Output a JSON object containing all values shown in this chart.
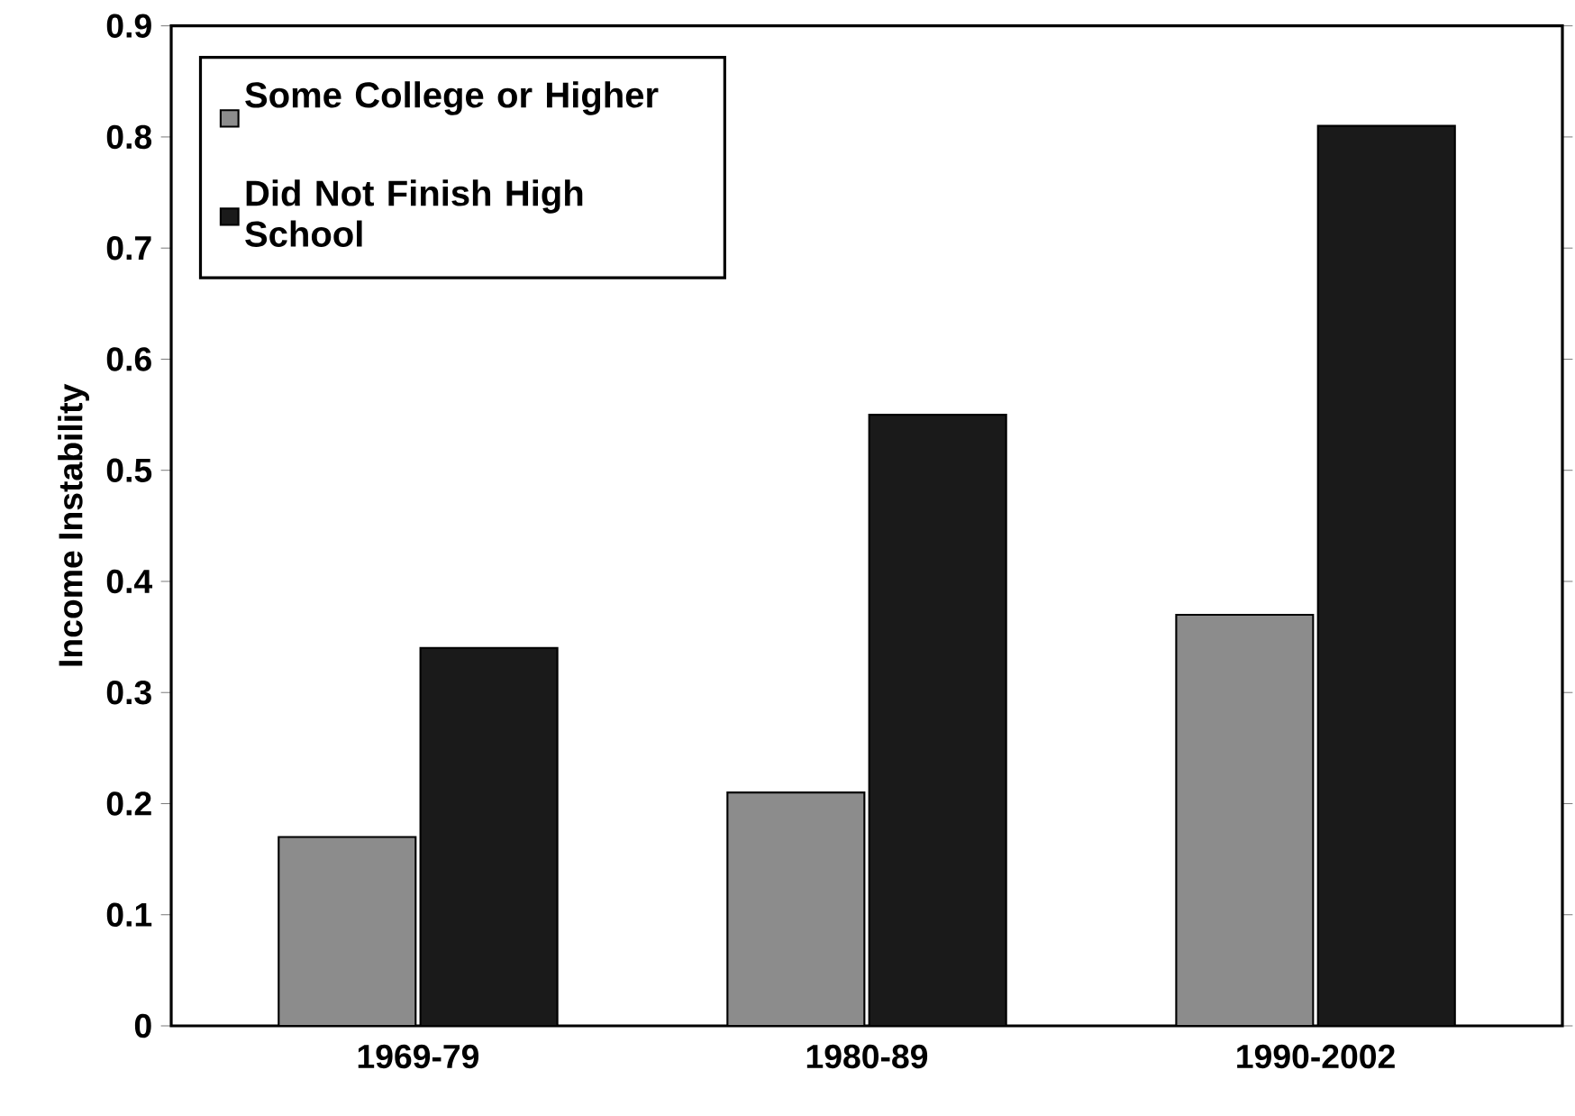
{
  "chart_data": {
    "type": "bar",
    "ylabel": "Income Instability",
    "categories": [
      "1969-79",
      "1980-89",
      "1990-2002"
    ],
    "series": [
      {
        "name": "Some College or Higher",
        "color": "#8c8c8c",
        "values": [
          0.17,
          0.21,
          0.37
        ]
      },
      {
        "name": "Did Not Finish High School",
        "color": "#1a1a1a",
        "values": [
          0.34,
          0.55,
          0.81
        ]
      }
    ],
    "ylim": [
      0,
      0.9
    ],
    "yticks": [
      0,
      0.1,
      0.2,
      0.3,
      0.4,
      0.5,
      0.6,
      0.7,
      0.8,
      0.9
    ],
    "legend": "top left"
  }
}
